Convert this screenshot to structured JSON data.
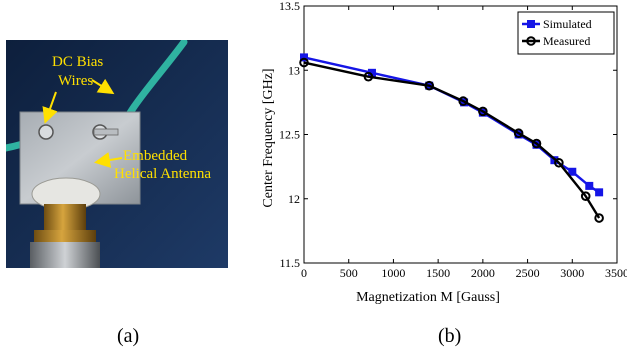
{
  "panel_a": {
    "caption": "(a)",
    "labels": {
      "dc_bias": "DC Bias",
      "wires": "Wires",
      "embedded": "Embedded",
      "helical": "Helical Antenna"
    }
  },
  "panel_b": {
    "caption": "(b)"
  },
  "chart_data": {
    "type": "line",
    "xlabel": "Magnetization M [Gauss]",
    "ylabel": "Center Frequency [GHz]",
    "xlim": [
      0,
      3500
    ],
    "ylim": [
      11.5,
      13.5
    ],
    "xticks": [
      0,
      500,
      1000,
      1500,
      2000,
      2500,
      3000,
      3500
    ],
    "yticks": [
      11.5,
      12,
      12.5,
      13,
      13.5
    ],
    "legend_position": "top-right",
    "grid": false,
    "series": [
      {
        "name": "Simulated",
        "color": "#1515e6",
        "marker": "square",
        "points": [
          [
            0,
            13.1
          ],
          [
            760,
            12.98
          ],
          [
            1400,
            12.88
          ],
          [
            1790,
            12.75
          ],
          [
            2000,
            12.67
          ],
          [
            2400,
            12.5
          ],
          [
            2600,
            12.42
          ],
          [
            2800,
            12.3
          ],
          [
            3000,
            12.21
          ],
          [
            3190,
            12.1
          ],
          [
            3300,
            12.05
          ]
        ]
      },
      {
        "name": "Measured",
        "color": "#000000",
        "marker": "circle",
        "points": [
          [
            0,
            13.06
          ],
          [
            720,
            12.95
          ],
          [
            1400,
            12.88
          ],
          [
            1780,
            12.76
          ],
          [
            2000,
            12.68
          ],
          [
            2400,
            12.51
          ],
          [
            2600,
            12.43
          ],
          [
            2850,
            12.28
          ],
          [
            3150,
            12.02
          ],
          [
            3300,
            11.85
          ]
        ]
      }
    ]
  }
}
